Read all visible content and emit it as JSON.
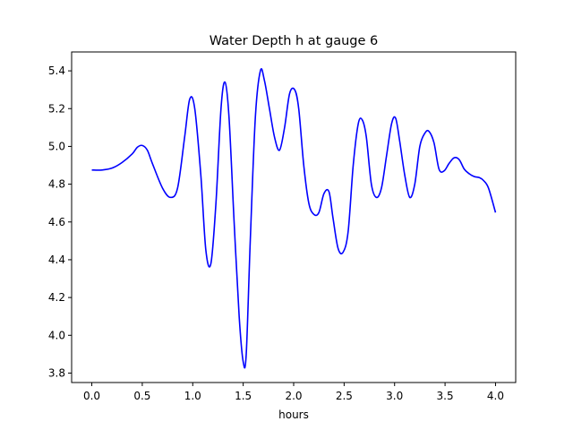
{
  "chart_data": {
    "type": "line",
    "title": "Water Depth h at gauge 6",
    "xlabel": "hours",
    "ylabel": "",
    "xlim": [
      -0.2,
      4.2
    ],
    "ylim": [
      3.75,
      5.5
    ],
    "xticks": [
      0.0,
      0.5,
      1.0,
      1.5,
      2.0,
      2.5,
      3.0,
      3.5,
      4.0
    ],
    "xtick_labels": [
      "0.0",
      "0.5",
      "1.0",
      "1.5",
      "2.0",
      "2.5",
      "3.0",
      "3.5",
      "4.0"
    ],
    "yticks": [
      3.8,
      4.0,
      4.2,
      4.4,
      4.6,
      4.8,
      5.0,
      5.2,
      5.4
    ],
    "ytick_labels": [
      "3.8",
      "4.0",
      "4.2",
      "4.4",
      "4.6",
      "4.8",
      "5.0",
      "5.2",
      "5.4"
    ],
    "grid": false,
    "series": [
      {
        "color": "#0000ff",
        "x": [
          0.0,
          0.1,
          0.2,
          0.3,
          0.4,
          0.45,
          0.5,
          0.55,
          0.6,
          0.7,
          0.78,
          0.85,
          0.92,
          0.97,
          1.02,
          1.08,
          1.13,
          1.18,
          1.23,
          1.28,
          1.32,
          1.36,
          1.41,
          1.46,
          1.5,
          1.53,
          1.57,
          1.62,
          1.67,
          1.71,
          1.76,
          1.81,
          1.86,
          1.91,
          1.96,
          2.01,
          2.05,
          2.1,
          2.15,
          2.2,
          2.25,
          2.3,
          2.35,
          2.39,
          2.44,
          2.49,
          2.54,
          2.59,
          2.64,
          2.68,
          2.72,
          2.77,
          2.82,
          2.87,
          2.92,
          2.97,
          3.01,
          3.05,
          3.1,
          3.15,
          3.2,
          3.25,
          3.3,
          3.34,
          3.39,
          3.44,
          3.49,
          3.54,
          3.59,
          3.64,
          3.69,
          3.74,
          3.79,
          3.84,
          3.88,
          3.93,
          4.0
        ],
        "values": [
          4.875,
          4.875,
          4.885,
          4.915,
          4.96,
          4.995,
          5.005,
          4.98,
          4.91,
          4.78,
          4.73,
          4.78,
          5.05,
          5.25,
          5.2,
          4.85,
          4.45,
          4.38,
          4.7,
          5.2,
          5.34,
          5.15,
          4.6,
          4.1,
          3.86,
          3.9,
          4.5,
          5.15,
          5.4,
          5.35,
          5.2,
          5.05,
          4.98,
          5.1,
          5.28,
          5.3,
          5.2,
          4.9,
          4.7,
          4.64,
          4.65,
          4.75,
          4.76,
          4.62,
          4.46,
          4.44,
          4.55,
          4.9,
          5.12,
          5.14,
          5.05,
          4.8,
          4.73,
          4.78,
          4.95,
          5.12,
          5.15,
          5.03,
          4.85,
          4.73,
          4.8,
          5.0,
          5.07,
          5.08,
          5.02,
          4.88,
          4.87,
          4.91,
          4.94,
          4.93,
          4.88,
          4.855,
          4.84,
          4.835,
          4.82,
          4.78,
          4.65
        ]
      }
    ]
  }
}
